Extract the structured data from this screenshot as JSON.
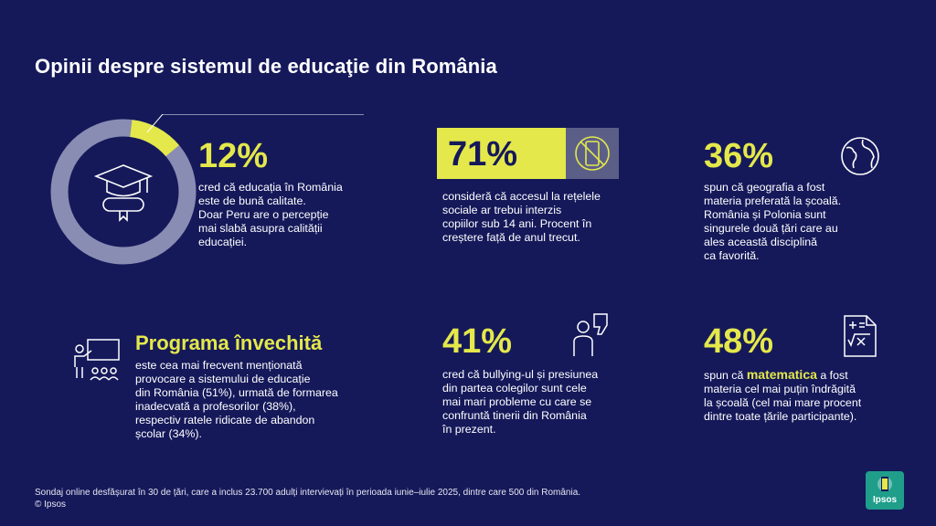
{
  "title": "Opinii despre sistemul de educaţie din România",
  "stat1": {
    "percent": "12%",
    "donut_value": 12,
    "text": [
      "cred că educația în România",
      "este de bună calitate.",
      "Doar Peru are o percepție",
      "mai slabă asupra calității",
      "educației."
    ],
    "icon": "graduation-cap-diploma-icon"
  },
  "stat2": {
    "percent": "71%",
    "text": [
      "consideră că accesul la rețelele",
      "sociale ar trebui interzis",
      "copiilor sub 14 ani. Procent în",
      "creștere față de anul trecut."
    ],
    "icon": "no-smartphone-icon"
  },
  "stat3": {
    "percent": "36%",
    "text": [
      "spun că geografia a fost",
      "materia preferată la școală.",
      "România și Polonia sunt",
      "singurele două țări care au",
      "ales această disciplină",
      "ca favorită."
    ],
    "icon": "globe-icon"
  },
  "stat4": {
    "heading": "Programa învechită",
    "text": [
      "este cea mai frecvent menționată",
      "provocare a sistemului de educație",
      "din România (51%), urmată de formarea",
      "inadecvată a profesorilor (38%),",
      "respectiv ratele ridicate de abandon",
      "școlar (34%)."
    ],
    "icon": "teacher-classroom-icon"
  },
  "stat5": {
    "percent": "41%",
    "text": [
      "cred că bullying-ul și presiunea",
      "din partea colegilor sunt cele",
      "mai mari probleme cu care se",
      "confruntă tinerii din România",
      "în prezent."
    ],
    "icon": "person-thumbs-down-icon"
  },
  "stat6": {
    "percent": "48%",
    "line1_pre": "spun că ",
    "line1_highlight": "matematica",
    "line1_post": " a fost",
    "text": [
      "materia cel mai puțin îndrăgită",
      "la școală (cel mai mare procent",
      "dintre toate țările participante)."
    ],
    "icon": "math-document-icon"
  },
  "footer": {
    "line1": "Sondaj online desfășurat în 30 de țări, care a inclus 23.700 adulți intervievați în perioada iunie–iulie 2025, dintre care 500 din România.",
    "line2": "© Ipsos"
  },
  "logo": {
    "text": "Ipsos"
  },
  "colors": {
    "background": "#15195a",
    "accent": "#e4e84a",
    "grey": "#5b5f88",
    "logo": "#1f9e8a"
  }
}
